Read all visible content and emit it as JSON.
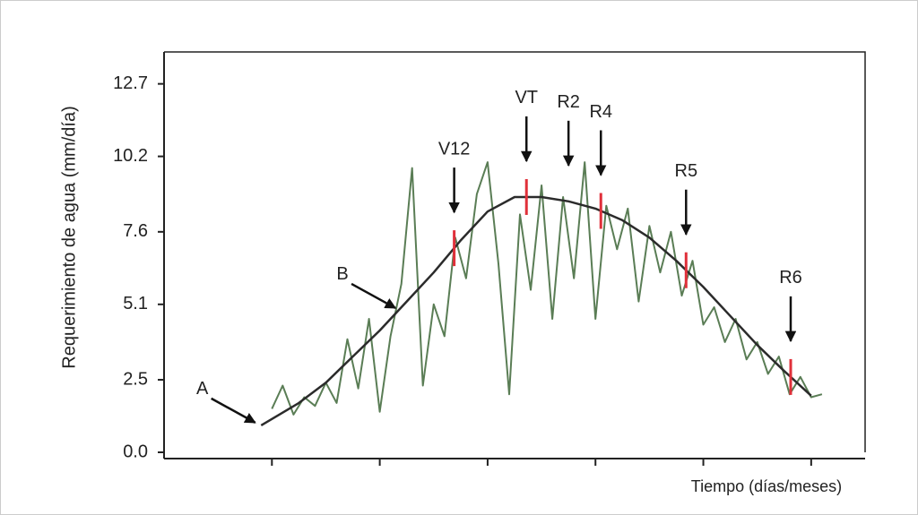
{
  "chart_data": {
    "type": "line",
    "y_label": "Requerimiento  de agua (mm/día)",
    "x_label": "Tiempo (días/meses)",
    "xlim": [
      0,
      6.5
    ],
    "xticks": [
      1,
      2,
      3,
      4,
      5,
      6
    ],
    "ylim": [
      0,
      13.8
    ],
    "yticks": [
      {
        "value": 0,
        "label": "0.0"
      },
      2.5,
      5.1,
      7.6,
      10.2,
      12.7
    ],
    "series": [
      {
        "color": "#5a7d55",
        "x": [
          1.0,
          1.1,
          1.2,
          1.3,
          1.4,
          1.5,
          1.6,
          1.7,
          1.8,
          1.9,
          2.0,
          2.1,
          2.2,
          2.3,
          2.4,
          2.5,
          2.6,
          2.7,
          2.8,
          2.9,
          3.0,
          3.1,
          3.2,
          3.3,
          3.4,
          3.5,
          3.6,
          3.7,
          3.8,
          3.9,
          4.0,
          4.1,
          4.2,
          4.3,
          4.4,
          4.5,
          4.6,
          4.7,
          4.8,
          4.9,
          5.0,
          5.1,
          5.2,
          5.3,
          5.4,
          5.5,
          5.6,
          5.7,
          5.8,
          5.9,
          6.0,
          6.1
        ],
        "values": [
          1.5,
          2.3,
          1.3,
          1.9,
          1.6,
          2.4,
          1.7,
          3.9,
          2.2,
          4.6,
          1.4,
          4.0,
          5.8,
          9.8,
          2.3,
          5.1,
          4.0,
          7.4,
          6.0,
          8.9,
          10.0,
          6.5,
          2.0,
          8.2,
          5.6,
          9.2,
          4.6,
          8.8,
          6.0,
          10.0,
          4.6,
          8.5,
          7.0,
          8.4,
          5.2,
          7.8,
          6.2,
          7.6,
          5.4,
          6.6,
          4.4,
          5.0,
          3.8,
          4.6,
          3.2,
          3.8,
          2.7,
          3.3,
          2.0,
          2.6,
          1.9,
          2.0
        ]
      },
      {
        "color": "#2b2b2b",
        "x": [
          0.9,
          1.25,
          1.5,
          1.75,
          2.0,
          2.25,
          2.5,
          2.75,
          3.0,
          3.25,
          3.5,
          3.75,
          4.0,
          4.25,
          4.5,
          4.75,
          5.0,
          5.25,
          5.5,
          5.75,
          6.0
        ],
        "values": [
          0.93,
          1.7,
          2.4,
          3.3,
          4.2,
          5.2,
          6.2,
          7.3,
          8.3,
          8.8,
          8.8,
          8.65,
          8.4,
          8.0,
          7.4,
          6.6,
          5.7,
          4.7,
          3.7,
          2.8,
          1.95
        ]
      }
    ],
    "stages": [
      {
        "label": "V12",
        "x": 2.69,
        "marked": true
      },
      {
        "label": "VT",
        "x": 3.36,
        "marked": true
      },
      {
        "label": "R2",
        "x": 3.75,
        "marked": false
      },
      {
        "label": "R4",
        "x": 4.05,
        "marked": true
      },
      {
        "label": "R5",
        "x": 4.84,
        "marked": true
      },
      {
        "label": "R6",
        "x": 5.81,
        "marked": true
      }
    ],
    "pointers": [
      {
        "label": "A",
        "x": 0.87,
        "series": 1
      },
      {
        "label": "B",
        "x": 2.17,
        "series": 1
      }
    ],
    "marker_color": "#e0303a"
  }
}
